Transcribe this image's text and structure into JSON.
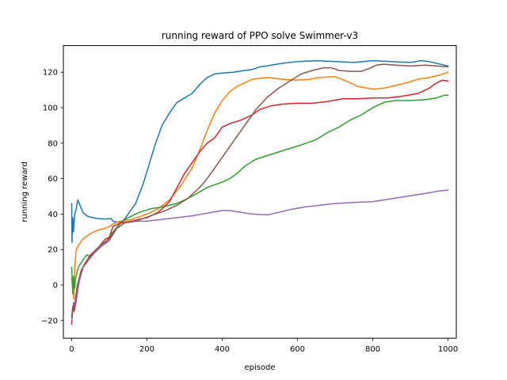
{
  "chart_data": {
    "type": "line",
    "title": "running reward of PPO solve Swimmer-v3",
    "xlabel": "episode",
    "ylabel": "running reward",
    "xlim": [
      -22,
      1022
    ],
    "ylim": [
      -30,
      135
    ],
    "xticks": [
      0,
      200,
      400,
      600,
      800,
      1000
    ],
    "yticks": [
      -20,
      0,
      20,
      40,
      60,
      80,
      100,
      120
    ],
    "grid": false,
    "legend": "none",
    "series": [
      {
        "color": "#1f77b4",
        "points": [
          [
            0,
            46
          ],
          [
            1,
            24
          ],
          [
            3,
            38
          ],
          [
            5,
            30
          ],
          [
            8,
            40
          ],
          [
            12,
            43
          ],
          [
            16,
            48
          ],
          [
            22,
            45
          ],
          [
            30,
            41
          ],
          [
            40,
            39
          ],
          [
            55,
            38
          ],
          [
            70,
            37.5
          ],
          [
            90,
            37.2
          ],
          [
            105,
            37.5
          ],
          [
            110,
            36
          ],
          [
            120,
            35.5
          ],
          [
            130,
            35.5
          ],
          [
            140,
            37
          ],
          [
            150,
            40
          ],
          [
            170,
            46
          ],
          [
            190,
            57
          ],
          [
            200,
            64
          ],
          [
            220,
            78
          ],
          [
            240,
            90
          ],
          [
            260,
            97
          ],
          [
            280,
            103
          ],
          [
            300,
            105.5
          ],
          [
            320,
            108
          ],
          [
            340,
            113
          ],
          [
            360,
            117
          ],
          [
            380,
            119
          ],
          [
            400,
            119.5
          ],
          [
            430,
            120
          ],
          [
            460,
            121
          ],
          [
            480,
            121.5
          ],
          [
            500,
            123
          ],
          [
            530,
            124
          ],
          [
            560,
            125
          ],
          [
            600,
            126
          ],
          [
            650,
            126.5
          ],
          [
            700,
            126
          ],
          [
            750,
            125.5
          ],
          [
            800,
            126.5
          ],
          [
            850,
            126
          ],
          [
            900,
            125.5
          ],
          [
            930,
            126.5
          ],
          [
            950,
            126
          ],
          [
            970,
            125
          ],
          [
            990,
            124
          ],
          [
            1000,
            123.5
          ]
        ]
      },
      {
        "color": "#ff7f0e",
        "points": [
          [
            0,
            4
          ],
          [
            3,
            -3
          ],
          [
            6,
            -8
          ],
          [
            8,
            10
          ],
          [
            12,
            20
          ],
          [
            20,
            23
          ],
          [
            30,
            26
          ],
          [
            50,
            29
          ],
          [
            70,
            31
          ],
          [
            90,
            32
          ],
          [
            100,
            33
          ],
          [
            115,
            35
          ],
          [
            130,
            36
          ],
          [
            160,
            37
          ],
          [
            200,
            40
          ],
          [
            230,
            43
          ],
          [
            260,
            48
          ],
          [
            290,
            56
          ],
          [
            320,
            66
          ],
          [
            340,
            76
          ],
          [
            360,
            87
          ],
          [
            380,
            97
          ],
          [
            400,
            104
          ],
          [
            420,
            109
          ],
          [
            440,
            112
          ],
          [
            460,
            114
          ],
          [
            480,
            116
          ],
          [
            500,
            116.5
          ],
          [
            520,
            117
          ],
          [
            540,
            116.5
          ],
          [
            560,
            116
          ],
          [
            600,
            115.5
          ],
          [
            630,
            116
          ],
          [
            660,
            117
          ],
          [
            700,
            117.5
          ],
          [
            730,
            115
          ],
          [
            760,
            112
          ],
          [
            800,
            110.5
          ],
          [
            830,
            111
          ],
          [
            860,
            112.5
          ],
          [
            890,
            114
          ],
          [
            920,
            116
          ],
          [
            950,
            117
          ],
          [
            980,
            118.5
          ],
          [
            1000,
            120
          ]
        ]
      },
      {
        "color": "#2ca02c",
        "points": [
          [
            0,
            10
          ],
          [
            3,
            -5
          ],
          [
            5,
            5
          ],
          [
            8,
            -2
          ],
          [
            10,
            3
          ],
          [
            15,
            8
          ],
          [
            20,
            11
          ],
          [
            30,
            14
          ],
          [
            40,
            17
          ],
          [
            50,
            16
          ],
          [
            70,
            20
          ],
          [
            90,
            24
          ],
          [
            110,
            30
          ],
          [
            130,
            35
          ],
          [
            150,
            38
          ],
          [
            180,
            41
          ],
          [
            210,
            43
          ],
          [
            240,
            44
          ],
          [
            280,
            46
          ],
          [
            320,
            50
          ],
          [
            360,
            55
          ],
          [
            400,
            58
          ],
          [
            420,
            60
          ],
          [
            440,
            63
          ],
          [
            460,
            67
          ],
          [
            490,
            71
          ],
          [
            520,
            73
          ],
          [
            550,
            75
          ],
          [
            580,
            77
          ],
          [
            610,
            79
          ],
          [
            650,
            82
          ],
          [
            680,
            86
          ],
          [
            710,
            89
          ],
          [
            740,
            93
          ],
          [
            770,
            96
          ],
          [
            800,
            100
          ],
          [
            830,
            103
          ],
          [
            860,
            104
          ],
          [
            900,
            104
          ],
          [
            940,
            104.5
          ],
          [
            970,
            105.5
          ],
          [
            990,
            107
          ],
          [
            1000,
            107
          ]
        ]
      },
      {
        "color": "#d62728",
        "points": [
          [
            0,
            -22
          ],
          [
            2,
            -16
          ],
          [
            5,
            -10
          ],
          [
            8,
            -14
          ],
          [
            12,
            -5
          ],
          [
            18,
            2
          ],
          [
            25,
            8
          ],
          [
            35,
            12
          ],
          [
            50,
            17
          ],
          [
            70,
            21
          ],
          [
            90,
            26
          ],
          [
            100,
            27
          ],
          [
            110,
            33
          ],
          [
            130,
            35
          ],
          [
            160,
            36
          ],
          [
            200,
            38
          ],
          [
            230,
            41
          ],
          [
            260,
            47
          ],
          [
            280,
            55
          ],
          [
            300,
            63
          ],
          [
            320,
            69
          ],
          [
            340,
            75
          ],
          [
            360,
            80
          ],
          [
            380,
            83
          ],
          [
            400,
            89
          ],
          [
            420,
            91
          ],
          [
            450,
            93
          ],
          [
            480,
            96
          ],
          [
            500,
            99
          ],
          [
            530,
            101
          ],
          [
            560,
            102
          ],
          [
            600,
            102.5
          ],
          [
            640,
            102.5
          ],
          [
            680,
            103.5
          ],
          [
            720,
            105
          ],
          [
            760,
            105
          ],
          [
            800,
            105.5
          ],
          [
            840,
            105.5
          ],
          [
            880,
            106.5
          ],
          [
            920,
            108
          ],
          [
            950,
            111
          ],
          [
            970,
            114
          ],
          [
            985,
            115.5
          ],
          [
            1000,
            115
          ]
        ]
      },
      {
        "color": "#9467bd",
        "points": [
          [
            0,
            -20
          ],
          [
            3,
            -14
          ],
          [
            6,
            -10
          ],
          [
            10,
            -12
          ],
          [
            15,
            -5
          ],
          [
            20,
            2
          ],
          [
            30,
            10
          ],
          [
            45,
            14
          ],
          [
            60,
            18
          ],
          [
            80,
            22
          ],
          [
            100,
            25
          ],
          [
            120,
            32
          ],
          [
            140,
            35
          ],
          [
            170,
            36
          ],
          [
            200,
            36
          ],
          [
            240,
            37
          ],
          [
            280,
            38
          ],
          [
            320,
            39
          ],
          [
            360,
            40.5
          ],
          [
            400,
            42
          ],
          [
            420,
            42
          ],
          [
            450,
            41
          ],
          [
            480,
            40
          ],
          [
            520,
            39.5
          ],
          [
            550,
            41
          ],
          [
            580,
            42.5
          ],
          [
            620,
            44
          ],
          [
            660,
            45
          ],
          [
            700,
            46
          ],
          [
            750,
            46.5
          ],
          [
            800,
            47
          ],
          [
            830,
            48
          ],
          [
            860,
            49
          ],
          [
            890,
            50
          ],
          [
            920,
            51
          ],
          [
            950,
            52
          ],
          [
            975,
            53
          ],
          [
            1000,
            53.5
          ]
        ]
      },
      {
        "color": "#8c564b",
        "points": [
          [
            0,
            -18
          ],
          [
            3,
            -12
          ],
          [
            6,
            -15
          ],
          [
            10,
            -8
          ],
          [
            15,
            0
          ],
          [
            22,
            5
          ],
          [
            30,
            10
          ],
          [
            45,
            15
          ],
          [
            60,
            19
          ],
          [
            80,
            23
          ],
          [
            100,
            26
          ],
          [
            120,
            32
          ],
          [
            140,
            35
          ],
          [
            170,
            36
          ],
          [
            210,
            39
          ],
          [
            250,
            42
          ],
          [
            280,
            45
          ],
          [
            310,
            49
          ],
          [
            340,
            55
          ],
          [
            360,
            60
          ],
          [
            380,
            66
          ],
          [
            400,
            72
          ],
          [
            430,
            81
          ],
          [
            460,
            90
          ],
          [
            490,
            99
          ],
          [
            520,
            106
          ],
          [
            550,
            111
          ],
          [
            580,
            115
          ],
          [
            610,
            119
          ],
          [
            640,
            121
          ],
          [
            670,
            122.5
          ],
          [
            690,
            122.5
          ],
          [
            710,
            121
          ],
          [
            740,
            120.5
          ],
          [
            770,
            120.5
          ],
          [
            790,
            122
          ],
          [
            810,
            124
          ],
          [
            830,
            124.5
          ],
          [
            860,
            124
          ],
          [
            900,
            123.5
          ],
          [
            940,
            124
          ],
          [
            970,
            123.5
          ],
          [
            1000,
            123
          ]
        ]
      }
    ]
  }
}
